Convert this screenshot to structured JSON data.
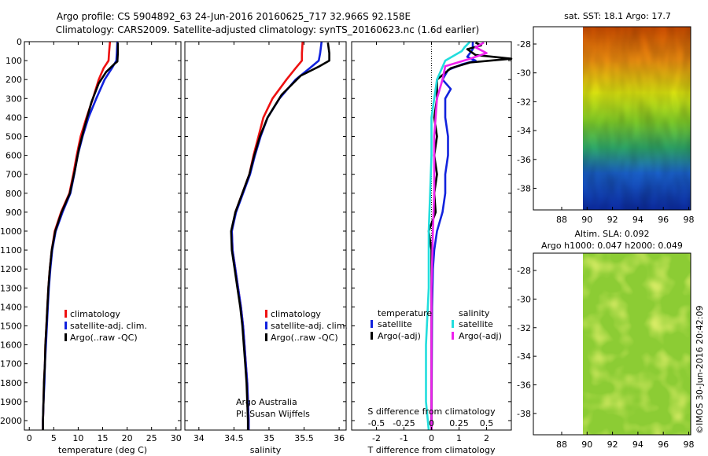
{
  "title_line1": "Argo profile: CS 5904892_63 24-Jun-2016 20160625_717 32.966S 92.158E",
  "title_line2": "Climatology: CARS2009. Satellite-adjusted climatology: synTS_20160623.nc (1.6d earlier)",
  "colors": {
    "clim": "#ee1111",
    "sat": "#1122dd",
    "argo": "#000000",
    "sat_s": "#22dddd",
    "argo_s": "#ee22ee"
  },
  "chart_data": [
    {
      "type": "line",
      "name": "temperature",
      "xlabel": "temperature (deg C)",
      "xlim": [
        -1,
        31
      ],
      "ylim": [
        0,
        2050
      ],
      "invert_y": true,
      "xticks": [
        0,
        5,
        10,
        15,
        20,
        25,
        30
      ],
      "yticks": [
        0,
        100,
        200,
        300,
        400,
        500,
        600,
        700,
        800,
        900,
        1000,
        1100,
        1200,
        1300,
        1400,
        1500,
        1600,
        1700,
        1800,
        1900,
        2000
      ],
      "legend": [
        "climatology",
        "satellite-adj. clim.",
        "Argo(..raw -QC)"
      ],
      "series": [
        {
          "name": "climatology",
          "color_key": "clim",
          "points": [
            [
              16.5,
              0
            ],
            [
              16.3,
              60
            ],
            [
              16.2,
              100
            ],
            [
              15.2,
              140
            ],
            [
              14.2,
              200
            ],
            [
              13.0,
              300
            ],
            [
              11.7,
              400
            ],
            [
              10.5,
              500
            ],
            [
              9.7,
              600
            ],
            [
              9.0,
              700
            ],
            [
              8.2,
              800
            ],
            [
              6.5,
              900
            ],
            [
              5.2,
              1000
            ],
            [
              4.6,
              1100
            ],
            [
              4.2,
              1200
            ],
            [
              3.9,
              1300
            ],
            [
              3.7,
              1400
            ],
            [
              3.5,
              1500
            ],
            [
              3.3,
              1600
            ],
            [
              3.2,
              1700
            ],
            [
              3.0,
              1800
            ],
            [
              2.9,
              1900
            ],
            [
              2.8,
              2000
            ],
            [
              2.8,
              2050
            ]
          ]
        },
        {
          "name": "satellite-adj. clim.",
          "color_key": "sat",
          "points": [
            [
              18.0,
              0
            ],
            [
              17.9,
              60
            ],
            [
              17.8,
              100
            ],
            [
              16.9,
              140
            ],
            [
              15.4,
              200
            ],
            [
              13.7,
              300
            ],
            [
              12.1,
              400
            ],
            [
              10.9,
              500
            ],
            [
              9.9,
              600
            ],
            [
              9.2,
              700
            ],
            [
              8.4,
              800
            ],
            [
              6.8,
              900
            ],
            [
              5.4,
              1000
            ],
            [
              4.7,
              1100
            ],
            [
              4.3,
              1200
            ],
            [
              4.0,
              1300
            ],
            [
              3.8,
              1400
            ],
            [
              3.6,
              1500
            ],
            [
              3.4,
              1600
            ],
            [
              3.2,
              1700
            ],
            [
              3.1,
              1800
            ],
            [
              2.9,
              1900
            ],
            [
              2.8,
              2000
            ],
            [
              2.8,
              2050
            ]
          ]
        },
        {
          "name": "Argo(..raw -QC)",
          "color_key": "argo",
          "points": [
            [
              18.1,
              5
            ],
            [
              18.1,
              60
            ],
            [
              18.0,
              105
            ],
            [
              17.3,
              120
            ],
            [
              15.7,
              160
            ],
            [
              14.2,
              220
            ],
            [
              12.7,
              320
            ],
            [
              11.3,
              450
            ],
            [
              10.2,
              560
            ],
            [
              9.3,
              680
            ],
            [
              8.3,
              800
            ],
            [
              6.6,
              900
            ],
            [
              5.3,
              1000
            ],
            [
              4.6,
              1100
            ],
            [
              4.2,
              1200
            ],
            [
              3.9,
              1300
            ],
            [
              3.7,
              1400
            ],
            [
              3.5,
              1500
            ],
            [
              3.3,
              1600
            ],
            [
              3.2,
              1700
            ],
            [
              3.0,
              1800
            ],
            [
              2.9,
              1900
            ],
            [
              2.8,
              2000
            ],
            [
              2.8,
              2050
            ]
          ]
        }
      ]
    },
    {
      "type": "line",
      "name": "salinity",
      "xlabel": "salinity",
      "xlim": [
        33.8,
        36.1
      ],
      "ylim": [
        0,
        2050
      ],
      "invert_y": true,
      "xticks": [
        34,
        34.5,
        35,
        35.5,
        36
      ],
      "legend": [
        "climatology",
        "satellite-adj. clim.",
        "Argo(..raw -QC)"
      ],
      "annotation_line1": "Argo Australia",
      "annotation_line2": "PI: Susan Wijffels",
      "series": [
        {
          "name": "climatology",
          "color_key": "clim",
          "points": [
            [
              35.48,
              0
            ],
            [
              35.47,
              60
            ],
            [
              35.47,
              100
            ],
            [
              35.38,
              140
            ],
            [
              35.25,
              200
            ],
            [
              35.05,
              300
            ],
            [
              34.92,
              400
            ],
            [
              34.85,
              500
            ],
            [
              34.78,
              600
            ],
            [
              34.72,
              700
            ],
            [
              34.62,
              800
            ],
            [
              34.52,
              900
            ],
            [
              34.47,
              1000
            ],
            [
              34.48,
              1100
            ],
            [
              34.52,
              1200
            ],
            [
              34.56,
              1300
            ],
            [
              34.6,
              1400
            ],
            [
              34.63,
              1500
            ],
            [
              34.65,
              1600
            ],
            [
              34.67,
              1700
            ],
            [
              34.69,
              1800
            ],
            [
              34.7,
              1900
            ],
            [
              34.71,
              2000
            ],
            [
              34.71,
              2050
            ]
          ]
        },
        {
          "name": "satellite-adj. clim.",
          "color_key": "sat",
          "points": [
            [
              35.75,
              0
            ],
            [
              35.73,
              60
            ],
            [
              35.71,
              100
            ],
            [
              35.58,
              140
            ],
            [
              35.38,
              200
            ],
            [
              35.15,
              300
            ],
            [
              34.98,
              400
            ],
            [
              34.88,
              500
            ],
            [
              34.8,
              600
            ],
            [
              34.73,
              700
            ],
            [
              34.63,
              800
            ],
            [
              34.53,
              900
            ],
            [
              34.47,
              1000
            ],
            [
              34.48,
              1100
            ],
            [
              34.52,
              1200
            ],
            [
              34.56,
              1300
            ],
            [
              34.6,
              1400
            ],
            [
              34.63,
              1500
            ],
            [
              34.65,
              1600
            ],
            [
              34.67,
              1700
            ],
            [
              34.69,
              1800
            ],
            [
              34.7,
              1900
            ],
            [
              34.71,
              2000
            ],
            [
              34.71,
              2050
            ]
          ]
        },
        {
          "name": "Argo(..raw -QC)",
          "color_key": "argo",
          "points": [
            [
              35.84,
              5
            ],
            [
              35.86,
              60
            ],
            [
              35.86,
              100
            ],
            [
              35.72,
              130
            ],
            [
              35.45,
              180
            ],
            [
              35.18,
              280
            ],
            [
              34.98,
              400
            ],
            [
              34.87,
              500
            ],
            [
              34.79,
              600
            ],
            [
              34.72,
              700
            ],
            [
              34.62,
              800
            ],
            [
              34.52,
              900
            ],
            [
              34.46,
              1000
            ],
            [
              34.47,
              1100
            ],
            [
              34.51,
              1200
            ],
            [
              34.55,
              1300
            ],
            [
              34.59,
              1400
            ],
            [
              34.62,
              1500
            ],
            [
              34.64,
              1600
            ],
            [
              34.66,
              1700
            ],
            [
              34.68,
              1800
            ],
            [
              34.69,
              1900
            ],
            [
              34.7,
              2000
            ],
            [
              34.7,
              2050
            ]
          ]
        }
      ]
    },
    {
      "type": "line",
      "name": "difference",
      "xlabel": "T difference from climatology",
      "xlabel2": "S difference from climatology",
      "xlim": [
        -2.9,
        2.9
      ],
      "ylim": [
        0,
        2050
      ],
      "invert_y": true,
      "xticks": [
        -2,
        -1,
        0,
        1,
        2
      ],
      "xticklabels": [
        "-2",
        "-1",
        "0",
        "1",
        "2"
      ],
      "xticks2": [
        -2,
        -1,
        0,
        1,
        2
      ],
      "xticklabels2": [
        "-0.5",
        "-0.25",
        "0",
        "0.25",
        "0.5"
      ],
      "legend_title_t": "temperature",
      "legend_title_s": "salinity",
      "legend": [
        "satellite",
        "Argo(-adj)",
        "satellite",
        "Argo(-adj)"
      ],
      "series": [
        {
          "name": "T satellite",
          "color_key": "sat",
          "points": [
            [
              1.5,
              0
            ],
            [
              1.5,
              40
            ],
            [
              1.3,
              80
            ],
            [
              1.6,
              100
            ],
            [
              1.1,
              120
            ],
            [
              0.6,
              150
            ],
            [
              0.4,
              200
            ],
            [
              0.7,
              250
            ],
            [
              0.5,
              300
            ],
            [
              0.5,
              400
            ],
            [
              0.6,
              500
            ],
            [
              0.6,
              600
            ],
            [
              0.5,
              700
            ],
            [
              0.5,
              800
            ],
            [
              0.4,
              900
            ],
            [
              0.2,
              1000
            ],
            [
              0.1,
              1100
            ],
            [
              0.05,
              1200
            ],
            [
              0.02,
              1400
            ],
            [
              0,
              2050
            ]
          ]
        },
        {
          "name": "T Argo(-adj)",
          "color_key": "argo",
          "points": [
            [
              1.6,
              5
            ],
            [
              1.8,
              20
            ],
            [
              1.3,
              40
            ],
            [
              1.6,
              70
            ],
            [
              2.9,
              90
            ],
            [
              1.4,
              110
            ],
            [
              0.7,
              140
            ],
            [
              0.2,
              200
            ],
            [
              0.2,
              300
            ],
            [
              0.1,
              400
            ],
            [
              0.2,
              500
            ],
            [
              0.1,
              600
            ],
            [
              0.2,
              700
            ],
            [
              0.1,
              800
            ],
            [
              0.15,
              900
            ],
            [
              -0.1,
              1000
            ],
            [
              0,
              1100
            ],
            [
              0,
              1300
            ],
            [
              0,
              1600
            ],
            [
              0,
              2050
            ]
          ]
        },
        {
          "name": "S satellite",
          "color_key": "sat_s",
          "points": [
            [
              1.4,
              0
            ],
            [
              1.2,
              30
            ],
            [
              1.1,
              50
            ],
            [
              0.5,
              100
            ],
            [
              0.2,
              200
            ],
            [
              0,
              400
            ],
            [
              0,
              600
            ],
            [
              -0.1,
              1000
            ],
            [
              -0.1,
              1300
            ],
            [
              -0.2,
              1600
            ],
            [
              -0.2,
              1900
            ],
            [
              -0.1,
              2050
            ]
          ]
        },
        {
          "name": "S Argo(-adj)",
          "color_key": "argo_s",
          "points": [
            [
              1.9,
              5
            ],
            [
              1.6,
              30
            ],
            [
              2.0,
              60
            ],
            [
              1.4,
              90
            ],
            [
              0.5,
              130
            ],
            [
              0.4,
              200
            ],
            [
              0.2,
              300
            ],
            [
              0.1,
              500
            ],
            [
              0.1,
              800
            ],
            [
              0.05,
              1000
            ],
            [
              0,
              1300
            ],
            [
              0,
              1600
            ],
            [
              0,
              2050
            ]
          ]
        }
      ]
    }
  ],
  "map1": {
    "title": "sat. SST: 18.1 Argo: 17.7",
    "xticks": [
      "88",
      "90",
      "92",
      "94",
      "96",
      "98"
    ],
    "yticks": [
      "-28",
      "-30",
      "-32",
      "-34",
      "-36",
      "-38"
    ]
  },
  "map2": {
    "title_line1": "Altim. SLA: 0.092",
    "title_line2": "Argo h1000: 0.047 h2000: 0.049",
    "xticks": [
      "88",
      "90",
      "92",
      "94",
      "96",
      "98"
    ],
    "yticks": [
      "-28",
      "-30",
      "-32",
      "-34",
      "-36",
      "-38"
    ]
  },
  "footer": "©IMOS 30-Jun-2016 20:42:09"
}
